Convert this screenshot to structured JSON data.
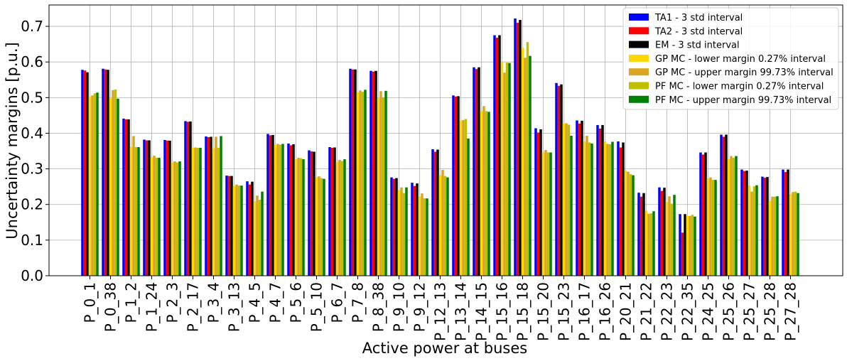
{
  "chart_data": {
    "type": "bar",
    "xlabel": "Active power at buses",
    "ylabel": "Uncertainty margins [p.u.]",
    "ylim": [
      0,
      0.76
    ],
    "yticks": [
      "0.0",
      "0.1",
      "0.2",
      "0.3",
      "0.4",
      "0.5",
      "0.6",
      "0.7"
    ],
    "grid": true,
    "legend_position": "top-right",
    "categories": [
      "P_0_1",
      "P_0_38",
      "P_1_2",
      "P_1_24",
      "P_2_3",
      "P_2_17",
      "P_3_4",
      "P_3_13",
      "P_4_5",
      "P_4_7",
      "P_5_6",
      "P_5_10",
      "P_6_7",
      "P_7_8",
      "P_8_38",
      "P_9_10",
      "P_9_12",
      "P_12_13",
      "P_13_14",
      "P_14_15",
      "P_15_16",
      "P_15_18",
      "P_15_20",
      "P_15_23",
      "P_16_17",
      "P_16_26",
      "P_20_21",
      "P_21_22",
      "P_22_23",
      "P_22_35",
      "P_24_25",
      "P_25_26",
      "P_25_27",
      "P_25_28",
      "P_27_28"
    ],
    "series": [
      {
        "name": "TA1 - 3 std interval",
        "color": "#0000ff",
        "values": [
          0.578,
          0.581,
          0.441,
          0.382,
          0.381,
          0.434,
          0.391,
          0.281,
          0.265,
          0.398,
          0.371,
          0.352,
          0.361,
          0.581,
          0.575,
          0.276,
          0.261,
          0.355,
          0.506,
          0.585,
          0.675,
          0.722,
          0.414,
          0.541,
          0.436,
          0.423,
          0.377,
          0.233,
          0.248,
          0.173,
          0.346,
          0.396,
          0.298,
          0.278,
          0.298
        ]
      },
      {
        "name": "TA2 - 3 std interval",
        "color": "#ff0000",
        "values": [
          0.576,
          0.579,
          0.439,
          0.38,
          0.379,
          0.432,
          0.389,
          0.28,
          0.256,
          0.394,
          0.366,
          0.349,
          0.359,
          0.579,
          0.573,
          0.272,
          0.252,
          0.348,
          0.503,
          0.58,
          0.668,
          0.71,
          0.402,
          0.533,
          0.427,
          0.413,
          0.36,
          0.222,
          0.238,
          0.121,
          0.34,
          0.39,
          0.294,
          0.275,
          0.291
        ]
      },
      {
        "name": "EM - 3 std interval",
        "color": "#000000",
        "values": [
          0.571,
          0.578,
          0.439,
          0.38,
          0.379,
          0.433,
          0.39,
          0.28,
          0.264,
          0.395,
          0.369,
          0.348,
          0.36,
          0.579,
          0.575,
          0.274,
          0.259,
          0.354,
          0.504,
          0.585,
          0.675,
          0.718,
          0.411,
          0.537,
          0.435,
          0.423,
          0.374,
          0.232,
          0.247,
          0.173,
          0.346,
          0.396,
          0.295,
          0.277,
          0.298
        ]
      },
      {
        "name": "GP MC - lower margin 0.27% interval",
        "color": "#ffd700",
        "values": [
          0.502,
          0.498,
          0.362,
          0.332,
          0.318,
          0.359,
          0.358,
          0.252,
          0.209,
          0.367,
          0.327,
          0.277,
          0.319,
          0.515,
          0.498,
          0.24,
          0.222,
          0.282,
          0.435,
          0.462,
          0.6,
          0.64,
          0.346,
          0.427,
          0.377,
          0.377,
          0.295,
          0.182,
          0.207,
          0.168,
          0.274,
          0.327,
          0.253,
          0.21,
          0.229
        ]
      },
      {
        "name": "GP MC - upper margin 99.73% interval",
        "color": "#daa520",
        "values": [
          0.506,
          0.521,
          0.392,
          0.337,
          0.321,
          0.36,
          0.39,
          0.256,
          0.225,
          0.37,
          0.331,
          0.279,
          0.325,
          0.52,
          0.518,
          0.248,
          0.231,
          0.297,
          0.437,
          0.476,
          0.57,
          0.612,
          0.353,
          0.428,
          0.393,
          0.37,
          0.292,
          0.174,
          0.223,
          0.168,
          0.276,
          0.336,
          0.236,
          0.222,
          0.235
        ]
      },
      {
        "name": "PF MC - lower margin 0.27% interval",
        "color": "#bfbf00",
        "values": [
          0.512,
          0.523,
          0.361,
          0.331,
          0.318,
          0.359,
          0.359,
          0.253,
          0.213,
          0.368,
          0.33,
          0.274,
          0.322,
          0.516,
          0.501,
          0.232,
          0.217,
          0.28,
          0.44,
          0.462,
          0.598,
          0.656,
          0.346,
          0.424,
          0.374,
          0.369,
          0.285,
          0.175,
          0.202,
          0.171,
          0.269,
          0.331,
          0.251,
          0.222,
          0.236
        ]
      },
      {
        "name": "PF MC - upper margin 99.73% interval",
        "color": "#008000",
        "values": [
          0.514,
          0.497,
          0.361,
          0.331,
          0.321,
          0.359,
          0.392,
          0.253,
          0.236,
          0.37,
          0.327,
          0.272,
          0.327,
          0.522,
          0.519,
          0.248,
          0.217,
          0.276,
          0.385,
          0.46,
          0.597,
          0.617,
          0.346,
          0.393,
          0.371,
          0.376,
          0.282,
          0.181,
          0.227,
          0.166,
          0.269,
          0.336,
          0.254,
          0.223,
          0.232
        ]
      }
    ]
  }
}
